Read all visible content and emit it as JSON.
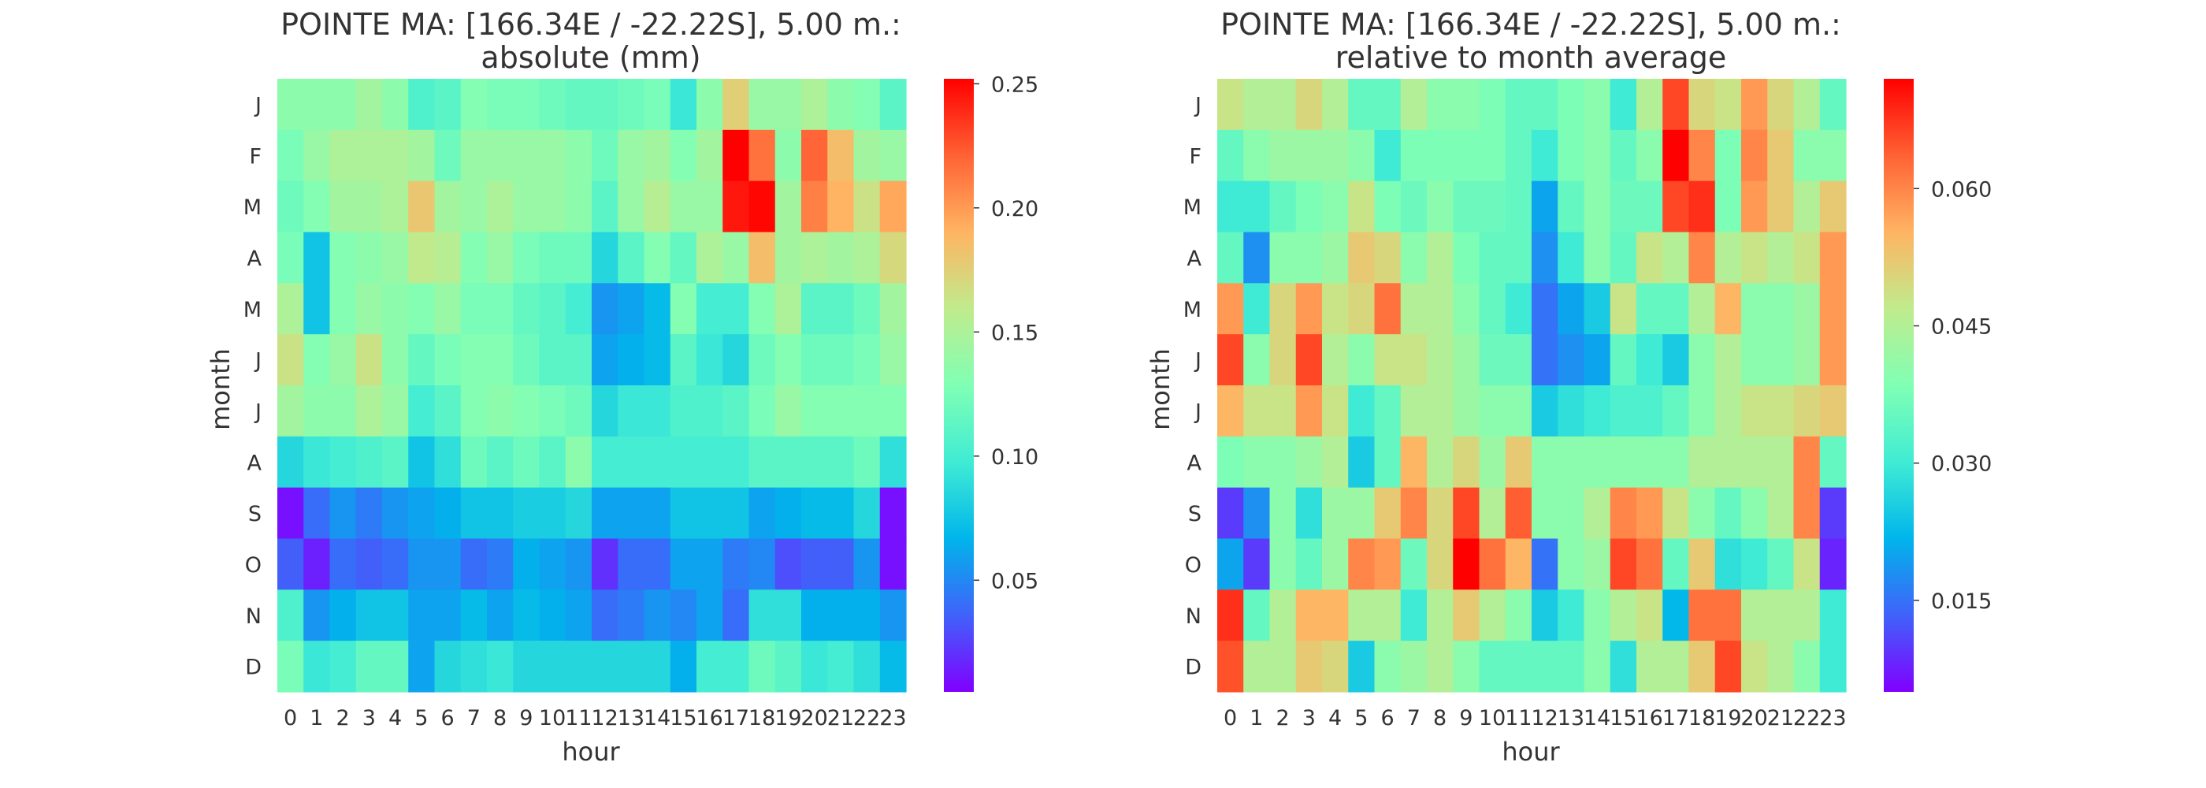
{
  "chart_data": [
    {
      "type": "heatmap",
      "title": "POINTE MA: [166.34E / -22.22S], 5.00 m.:",
      "subtitle": "absolute (mm)",
      "xlabel": "hour",
      "ylabel": "month",
      "x": [
        "0",
        "1",
        "2",
        "3",
        "4",
        "5",
        "6",
        "7",
        "8",
        "9",
        "10",
        "11",
        "12",
        "13",
        "14",
        "15",
        "16",
        "17",
        "18",
        "19",
        "20",
        "21",
        "22",
        "23"
      ],
      "y": [
        "J",
        "F",
        "M",
        "A",
        "M",
        "J",
        "J",
        "A",
        "S",
        "O",
        "N",
        "D"
      ],
      "colormap": "rainbow",
      "vmin": 0.005,
      "vmax": 0.252,
      "colorbar_ticks": [
        "0.05",
        "0.10",
        "0.15",
        "0.20",
        "0.25"
      ],
      "colorbar_tick_values": [
        0.05,
        0.1,
        0.15,
        0.2,
        0.25
      ],
      "values": [
        [
          0.135,
          0.135,
          0.135,
          0.145,
          0.135,
          0.105,
          0.11,
          0.13,
          0.125,
          0.125,
          0.12,
          0.115,
          0.115,
          0.12,
          0.125,
          0.095,
          0.135,
          0.175,
          0.14,
          0.14,
          0.15,
          0.135,
          0.13,
          0.11
        ],
        [
          0.125,
          0.14,
          0.15,
          0.15,
          0.15,
          0.145,
          0.12,
          0.14,
          0.14,
          0.14,
          0.14,
          0.135,
          0.12,
          0.14,
          0.145,
          0.13,
          0.145,
          0.252,
          0.215,
          0.135,
          0.22,
          0.185,
          0.145,
          0.14
        ],
        [
          0.12,
          0.13,
          0.145,
          0.145,
          0.15,
          0.18,
          0.145,
          0.14,
          0.15,
          0.14,
          0.14,
          0.135,
          0.11,
          0.14,
          0.155,
          0.14,
          0.14,
          0.245,
          0.25,
          0.145,
          0.21,
          0.19,
          0.165,
          0.195
        ],
        [
          0.125,
          0.075,
          0.13,
          0.135,
          0.14,
          0.16,
          0.155,
          0.13,
          0.14,
          0.125,
          0.12,
          0.12,
          0.085,
          0.11,
          0.13,
          0.115,
          0.15,
          0.14,
          0.185,
          0.145,
          0.15,
          0.145,
          0.15,
          0.17
        ],
        [
          0.15,
          0.075,
          0.13,
          0.14,
          0.135,
          0.13,
          0.14,
          0.125,
          0.125,
          0.115,
          0.11,
          0.1,
          0.055,
          0.06,
          0.07,
          0.13,
          0.1,
          0.1,
          0.13,
          0.15,
          0.11,
          0.11,
          0.12,
          0.145
        ],
        [
          0.165,
          0.13,
          0.14,
          0.165,
          0.135,
          0.115,
          0.125,
          0.13,
          0.13,
          0.12,
          0.11,
          0.11,
          0.06,
          0.065,
          0.07,
          0.11,
          0.095,
          0.085,
          0.12,
          0.13,
          0.12,
          0.12,
          0.125,
          0.14
        ],
        [
          0.145,
          0.135,
          0.135,
          0.15,
          0.14,
          0.1,
          0.11,
          0.13,
          0.135,
          0.13,
          0.125,
          0.12,
          0.085,
          0.095,
          0.095,
          0.105,
          0.105,
          0.11,
          0.125,
          0.14,
          0.13,
          0.13,
          0.13,
          0.13
        ],
        [
          0.085,
          0.095,
          0.1,
          0.105,
          0.11,
          0.075,
          0.09,
          0.12,
          0.11,
          0.12,
          0.11,
          0.135,
          0.1,
          0.1,
          0.1,
          0.1,
          0.1,
          0.1,
          0.11,
          0.11,
          0.11,
          0.11,
          0.12,
          0.09
        ],
        [
          0.01,
          0.04,
          0.055,
          0.045,
          0.055,
          0.06,
          0.065,
          0.075,
          0.075,
          0.08,
          0.08,
          0.085,
          0.06,
          0.06,
          0.06,
          0.075,
          0.075,
          0.075,
          0.06,
          0.065,
          0.07,
          0.07,
          0.085,
          0.01
        ],
        [
          0.035,
          0.015,
          0.04,
          0.035,
          0.04,
          0.055,
          0.055,
          0.04,
          0.045,
          0.065,
          0.06,
          0.055,
          0.02,
          0.04,
          0.04,
          0.06,
          0.06,
          0.045,
          0.05,
          0.03,
          0.035,
          0.035,
          0.055,
          0.01
        ],
        [
          0.105,
          0.055,
          0.065,
          0.075,
          0.075,
          0.06,
          0.06,
          0.07,
          0.06,
          0.07,
          0.065,
          0.06,
          0.04,
          0.045,
          0.055,
          0.05,
          0.06,
          0.04,
          0.09,
          0.09,
          0.065,
          0.065,
          0.065,
          0.055
        ],
        [
          0.125,
          0.095,
          0.1,
          0.115,
          0.115,
          0.06,
          0.085,
          0.09,
          0.095,
          0.085,
          0.085,
          0.085,
          0.085,
          0.085,
          0.085,
          0.065,
          0.1,
          0.1,
          0.12,
          0.11,
          0.095,
          0.1,
          0.09,
          0.07
        ]
      ]
    },
    {
      "type": "heatmap",
      "title": "POINTE MA: [166.34E / -22.22S], 5.00 m.:",
      "subtitle": "relative to month average",
      "xlabel": "hour",
      "ylabel": "month",
      "x": [
        "0",
        "1",
        "2",
        "3",
        "4",
        "5",
        "6",
        "7",
        "8",
        "9",
        "10",
        "11",
        "12",
        "13",
        "14",
        "15",
        "16",
        "17",
        "18",
        "19",
        "20",
        "21",
        "22",
        "23"
      ],
      "y": [
        "J",
        "F",
        "M",
        "A",
        "M",
        "J",
        "J",
        "A",
        "S",
        "O",
        "N",
        "D"
      ],
      "colormap": "rainbow",
      "vmin": 0.005,
      "vmax": 0.072,
      "colorbar_ticks": [
        "0.015",
        "0.030",
        "0.045",
        "0.060"
      ],
      "colorbar_tick_values": [
        0.015,
        0.03,
        0.045,
        0.06
      ],
      "values": [
        [
          0.048,
          0.045,
          0.045,
          0.05,
          0.045,
          0.035,
          0.035,
          0.045,
          0.04,
          0.04,
          0.038,
          0.035,
          0.035,
          0.038,
          0.04,
          0.03,
          0.045,
          0.066,
          0.05,
          0.048,
          0.058,
          0.05,
          0.045,
          0.035
        ],
        [
          0.035,
          0.04,
          0.042,
          0.042,
          0.042,
          0.04,
          0.03,
          0.038,
          0.038,
          0.038,
          0.038,
          0.035,
          0.03,
          0.038,
          0.04,
          0.035,
          0.04,
          0.072,
          0.06,
          0.038,
          0.06,
          0.052,
          0.04,
          0.04
        ],
        [
          0.03,
          0.03,
          0.035,
          0.038,
          0.04,
          0.048,
          0.038,
          0.036,
          0.04,
          0.036,
          0.036,
          0.035,
          0.02,
          0.035,
          0.04,
          0.036,
          0.036,
          0.066,
          0.068,
          0.038,
          0.058,
          0.052,
          0.045,
          0.052
        ],
        [
          0.035,
          0.018,
          0.04,
          0.04,
          0.042,
          0.052,
          0.05,
          0.04,
          0.045,
          0.038,
          0.035,
          0.035,
          0.018,
          0.03,
          0.04,
          0.035,
          0.048,
          0.045,
          0.06,
          0.045,
          0.048,
          0.045,
          0.048,
          0.058
        ],
        [
          0.058,
          0.03,
          0.05,
          0.058,
          0.048,
          0.05,
          0.062,
          0.045,
          0.045,
          0.04,
          0.035,
          0.03,
          0.015,
          0.02,
          0.025,
          0.048,
          0.035,
          0.035,
          0.045,
          0.055,
          0.04,
          0.04,
          0.042,
          0.058
        ],
        [
          0.066,
          0.04,
          0.05,
          0.066,
          0.045,
          0.04,
          0.048,
          0.048,
          0.045,
          0.042,
          0.036,
          0.036,
          0.015,
          0.018,
          0.02,
          0.035,
          0.03,
          0.025,
          0.04,
          0.045,
          0.04,
          0.04,
          0.042,
          0.058
        ],
        [
          0.055,
          0.048,
          0.048,
          0.058,
          0.048,
          0.03,
          0.035,
          0.045,
          0.045,
          0.042,
          0.04,
          0.04,
          0.025,
          0.028,
          0.03,
          0.032,
          0.032,
          0.035,
          0.04,
          0.045,
          0.048,
          0.048,
          0.05,
          0.052
        ],
        [
          0.038,
          0.04,
          0.04,
          0.042,
          0.045,
          0.025,
          0.035,
          0.055,
          0.045,
          0.05,
          0.042,
          0.052,
          0.04,
          0.04,
          0.04,
          0.04,
          0.04,
          0.04,
          0.045,
          0.045,
          0.045,
          0.045,
          0.06,
          0.035
        ],
        [
          0.01,
          0.018,
          0.04,
          0.028,
          0.042,
          0.042,
          0.052,
          0.06,
          0.05,
          0.066,
          0.045,
          0.064,
          0.04,
          0.04,
          0.045,
          0.06,
          0.058,
          0.048,
          0.04,
          0.035,
          0.04,
          0.045,
          0.06,
          0.01
        ],
        [
          0.02,
          0.01,
          0.04,
          0.035,
          0.042,
          0.06,
          0.058,
          0.036,
          0.05,
          0.072,
          0.062,
          0.055,
          0.015,
          0.04,
          0.042,
          0.066,
          0.062,
          0.035,
          0.052,
          0.028,
          0.03,
          0.035,
          0.048,
          0.008
        ],
        [
          0.068,
          0.035,
          0.045,
          0.055,
          0.055,
          0.045,
          0.045,
          0.03,
          0.045,
          0.052,
          0.045,
          0.04,
          0.025,
          0.03,
          0.04,
          0.045,
          0.048,
          0.022,
          0.062,
          0.062,
          0.045,
          0.045,
          0.045,
          0.03
        ],
        [
          0.065,
          0.045,
          0.045,
          0.052,
          0.05,
          0.025,
          0.04,
          0.042,
          0.045,
          0.04,
          0.035,
          0.035,
          0.035,
          0.035,
          0.04,
          0.028,
          0.045,
          0.045,
          0.052,
          0.066,
          0.048,
          0.045,
          0.04,
          0.03
        ]
      ]
    }
  ]
}
